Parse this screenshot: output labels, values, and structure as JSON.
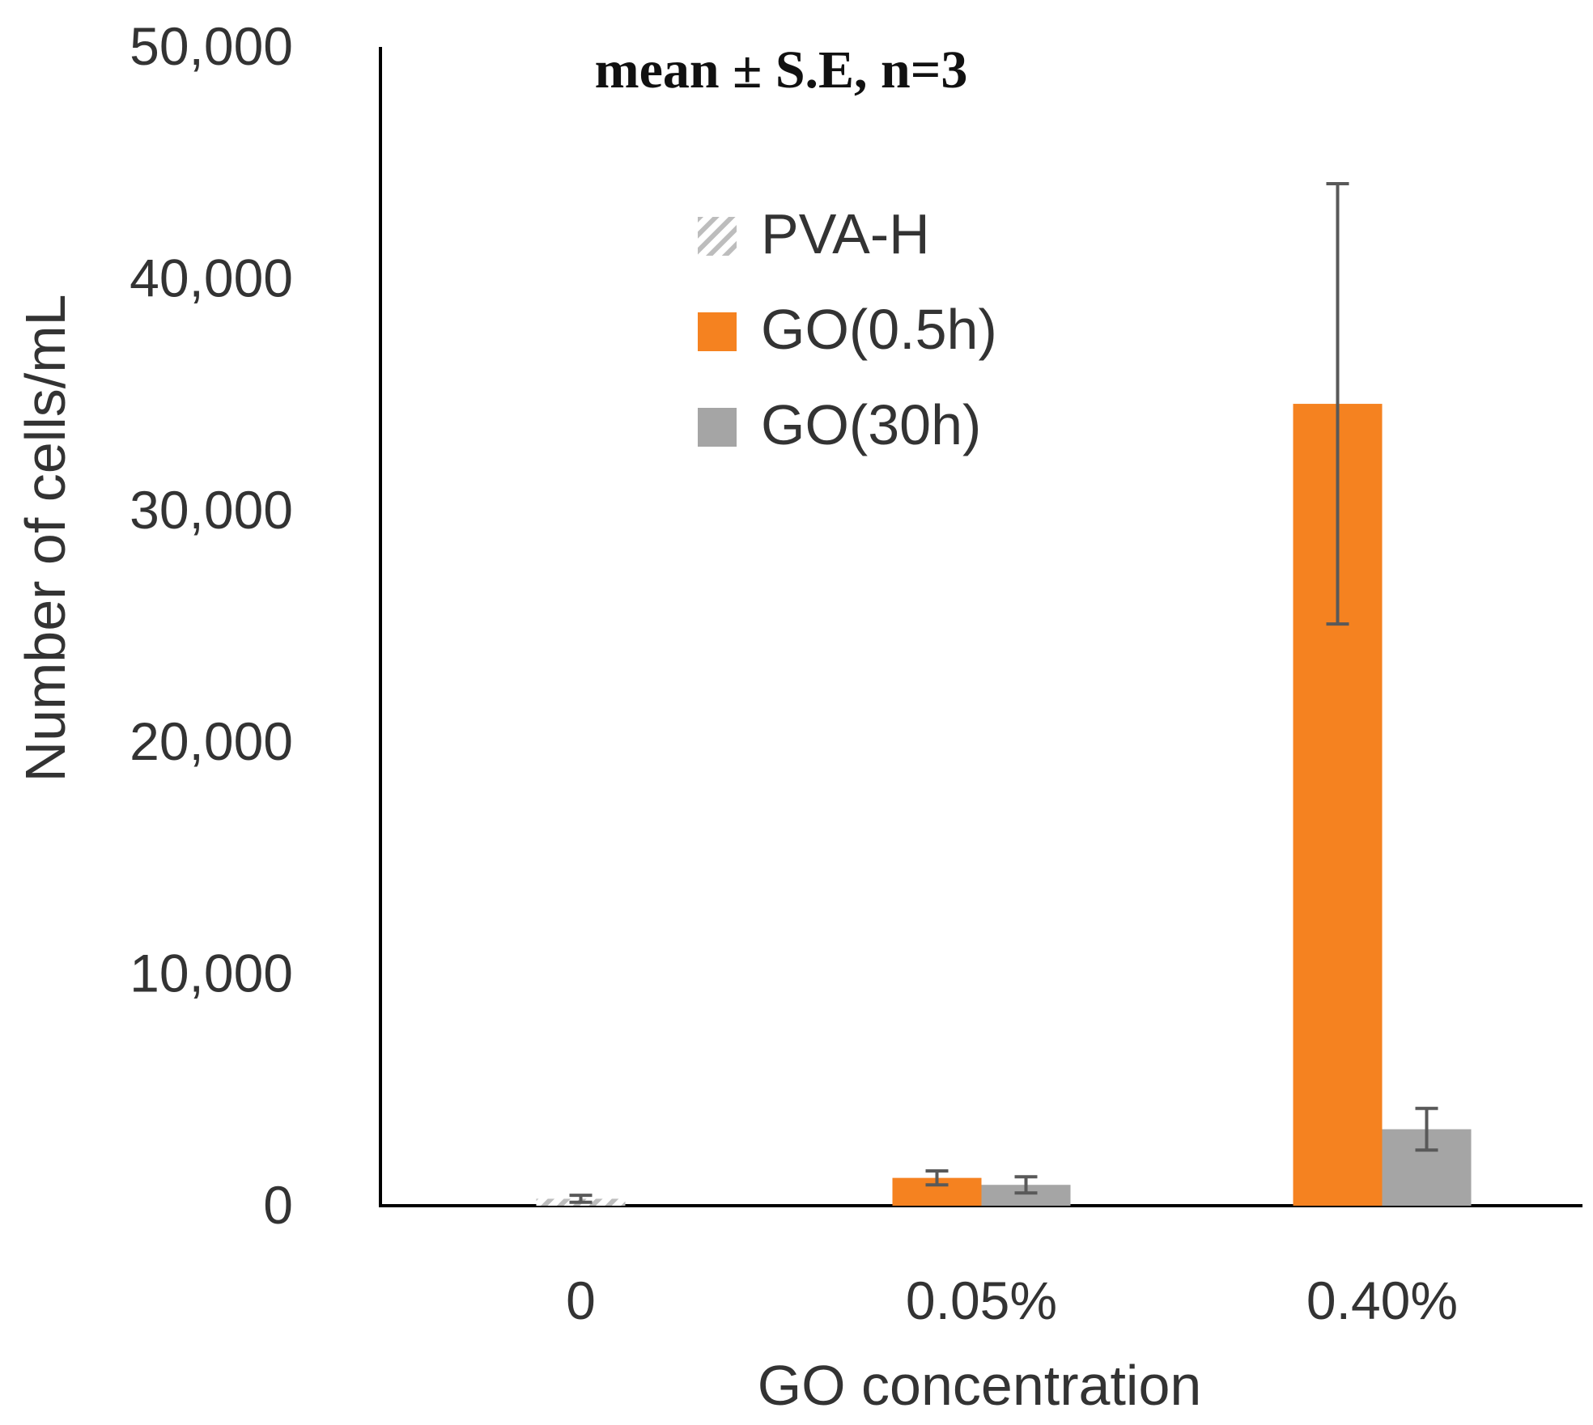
{
  "chart_data": {
    "type": "bar",
    "title": "",
    "annotation": "mean ± S.E, n=3",
    "xlabel": "GO concentration",
    "ylabel": "Number of cells/mL",
    "categories": [
      "0",
      "0.05%",
      "0.40%"
    ],
    "ylim": [
      0,
      50000
    ],
    "yticks": [
      0,
      10000,
      20000,
      30000,
      40000,
      50000
    ],
    "ytick_labels": [
      "0",
      "10,000",
      "20,000",
      "30,000",
      "40,000",
      "50,000"
    ],
    "grid": false,
    "legend_position": "upper-center",
    "series": [
      {
        "name": "PVA-H",
        "color": "#bdbdbd",
        "pattern": "hatch",
        "values": [
          300,
          null,
          null
        ],
        "errors": [
          150,
          null,
          null
        ]
      },
      {
        "name": "GO(0.5h)",
        "color": "#f58220",
        "values": [
          null,
          1200,
          34600
        ],
        "errors": [
          null,
          300,
          9500
        ]
      },
      {
        "name": "GO(30h)",
        "color": "#a5a5a5",
        "values": [
          null,
          900,
          3300
        ],
        "errors": [
          null,
          350,
          900
        ]
      }
    ]
  }
}
